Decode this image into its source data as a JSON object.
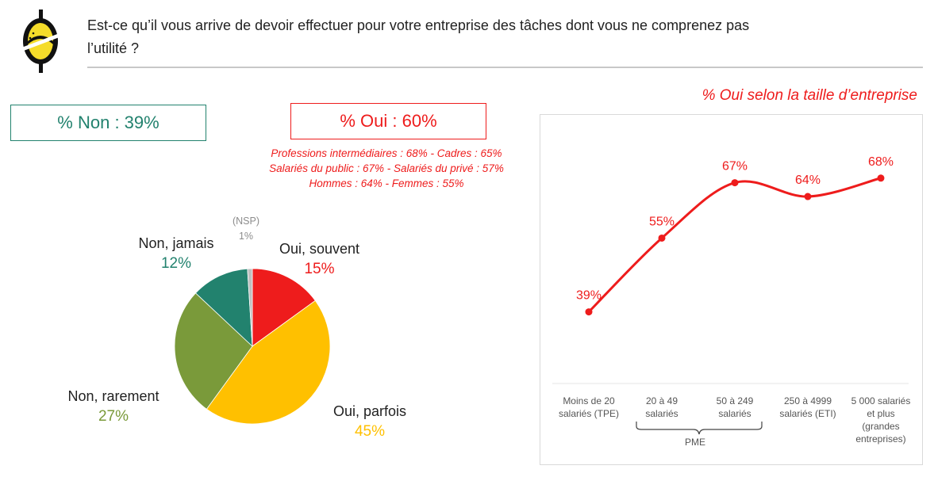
{
  "header": {
    "question_line1": "Est-ce qu’il vous arrive de devoir effectuer pour votre entreprise des tâches dont vous ne comprenez pas",
    "question_line2": "l’utilité ?"
  },
  "summary": {
    "non": "% Non : 39%",
    "oui": "% Oui : 60%",
    "details": [
      "Professions intermédiaires : 68% - Cadres : 65%",
      "Salariés du public : 67% - Salariés du privé : 57%",
      "Hommes : 64% - Femmes : 55%"
    ]
  },
  "colors": {
    "green": "#22826e",
    "olive": "#7a9a3a",
    "red": "#ee1c1c",
    "yellow": "#ffc000",
    "grey": "#bfbfbf",
    "logo_yellow": "#f5dc2a"
  },
  "chart_data": [
    {
      "type": "pie",
      "slices": [
        {
          "label": "Oui, souvent",
          "value": 15,
          "display": "15%",
          "color": "#ee1c1c"
        },
        {
          "label": "Oui, parfois",
          "value": 45,
          "display": "45%",
          "color": "#ffc000"
        },
        {
          "label": "Non, rarement",
          "value": 27,
          "display": "27%",
          "color": "#7a9a3a"
        },
        {
          "label": "Non, jamais",
          "value": 12,
          "display": "12%",
          "color": "#22826e"
        },
        {
          "label": "(NSP)",
          "value": 1,
          "display": "1%",
          "color": "#bfbfbf"
        }
      ]
    },
    {
      "type": "line",
      "title": "% Oui selon la taille d’entreprise",
      "x": [
        [
          "Moins de 20",
          "salariés (TPE)"
        ],
        [
          "20 à 49",
          "salariés"
        ],
        [
          "50 à 249",
          "salariés"
        ],
        [
          "250 à 4999",
          "salariés (ETI)"
        ],
        [
          "5 000 salariés",
          "et plus",
          "(grandes",
          "entreprises)"
        ]
      ],
      "values": [
        39,
        55,
        67,
        64,
        68
      ],
      "value_labels": [
        "39%",
        "55%",
        "67%",
        "64%",
        "68%"
      ],
      "group_label": "PME",
      "color": "#ee1c1c",
      "ylim": [
        30,
        75
      ],
      "grid": false
    }
  ]
}
